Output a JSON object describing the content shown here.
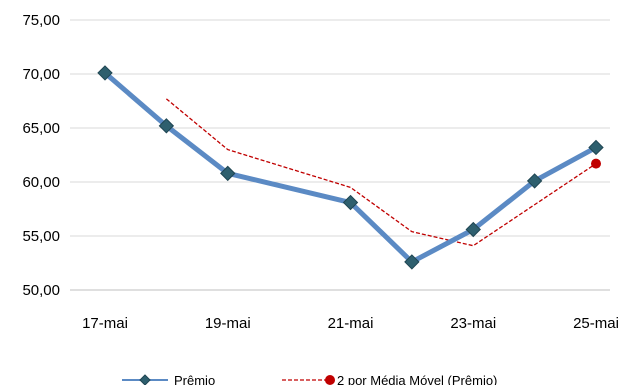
{
  "chart_data": {
    "type": "line",
    "title": "",
    "xlabel": "",
    "ylabel": "",
    "ylim": [
      50,
      75
    ],
    "y_ticks": [
      "50,00",
      "55,00",
      "60,00",
      "65,00",
      "70,00",
      "75,00"
    ],
    "categories": [
      "17-mai",
      "18-mai",
      "19-mai",
      "20-mai",
      "21-mai",
      "22-mai",
      "23-mai",
      "24-mai",
      "25-mai"
    ],
    "x_tick_labels": [
      "17-mai",
      "19-mai",
      "21-mai",
      "23-mai",
      "25-mai"
    ],
    "grid": "horizontal",
    "legend_position": "bottom",
    "series": [
      {
        "name": "Prêmio",
        "color": "#4f81bd",
        "marker": "diamond",
        "values": [
          70.1,
          65.2,
          60.8,
          null,
          58.1,
          52.6,
          55.6,
          60.1,
          63.2
        ]
      },
      {
        "name": "2 por Média Móvel (Prêmio)",
        "color": "#c00000",
        "style": "dashed",
        "values": [
          null,
          67.7,
          63.0,
          null,
          59.5,
          55.4,
          54.1,
          null,
          61.7
        ]
      }
    ]
  }
}
